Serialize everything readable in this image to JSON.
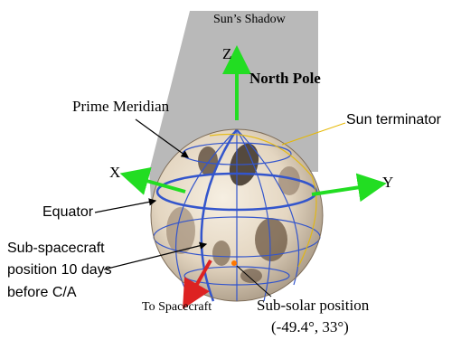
{
  "labels": {
    "sun_shadow": "Sun’s Shadow",
    "axis_z": "Z",
    "north_pole": "North Pole",
    "prime_meridian": "Prime Meridian",
    "sun_terminator": "Sun terminator",
    "axis_x": "X",
    "axis_y": "Y",
    "equator": "Equator",
    "sub_spacecraft_line1": "Sub-spacecraft",
    "sub_spacecraft_line2": "position 10 days",
    "sub_spacecraft_line3": "before C/A",
    "to_spacecraft": "To Spacecraft",
    "sub_solar_line1": "Sub-solar position",
    "sub_solar_line2": "(-49.4°, 33°)"
  },
  "colors": {
    "axis_arrows": "#22dd22",
    "spacecraft_arrow": "#dd2222",
    "grid_lines": "#3355cc",
    "terminator": "#e6b800",
    "shadow": "#b9b9b9",
    "sub_solar_point": "#ff7700"
  }
}
